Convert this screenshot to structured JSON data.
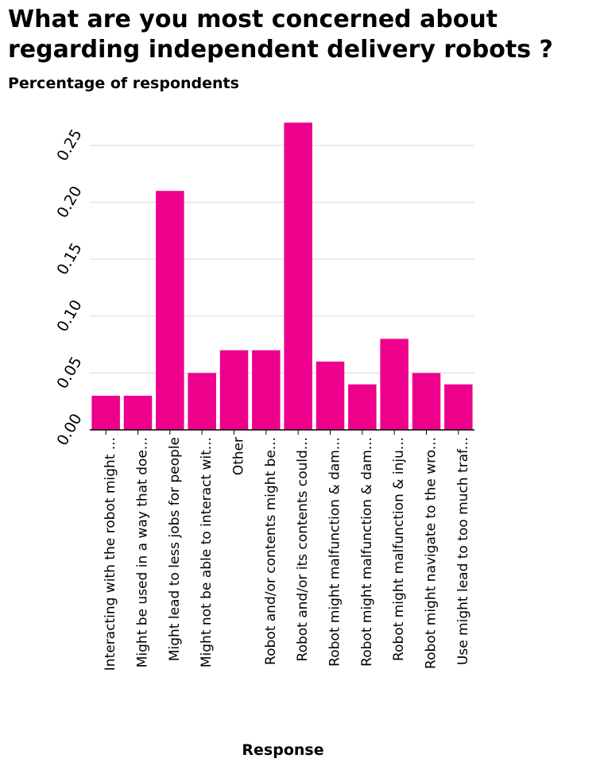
{
  "chart_data": {
    "type": "bar",
    "title": "What are you most concerned about regarding independent delivery robots ?",
    "ylabel": "Percentage of respondents",
    "xlabel": "Response",
    "categories": [
      "Interacting with the robot might ...",
      "Might be used in a way that doe...",
      "Might lead to less jobs for people",
      "Might not be able to interact wit...",
      "Other",
      "Robot and/or contents might be...",
      "Robot and/or its contents could...",
      "Robot might malfunction & dam...",
      "Robot might malfunction & dam...",
      "Robot might malfunction & inju...",
      "Robot might navigate to the wro...",
      "Use might lead to too much traf..."
    ],
    "values": [
      0.03,
      0.03,
      0.21,
      0.05,
      0.07,
      0.07,
      0.27,
      0.06,
      0.04,
      0.08,
      0.05,
      0.04
    ],
    "yticks": [
      "0.00",
      "0.05",
      "0.10",
      "0.15",
      "0.20",
      "0.25"
    ],
    "ylim": [
      0,
      0.28
    ],
    "grid": true,
    "bar_color": "#ec008c",
    "grid_color": "#d9d9d9"
  }
}
